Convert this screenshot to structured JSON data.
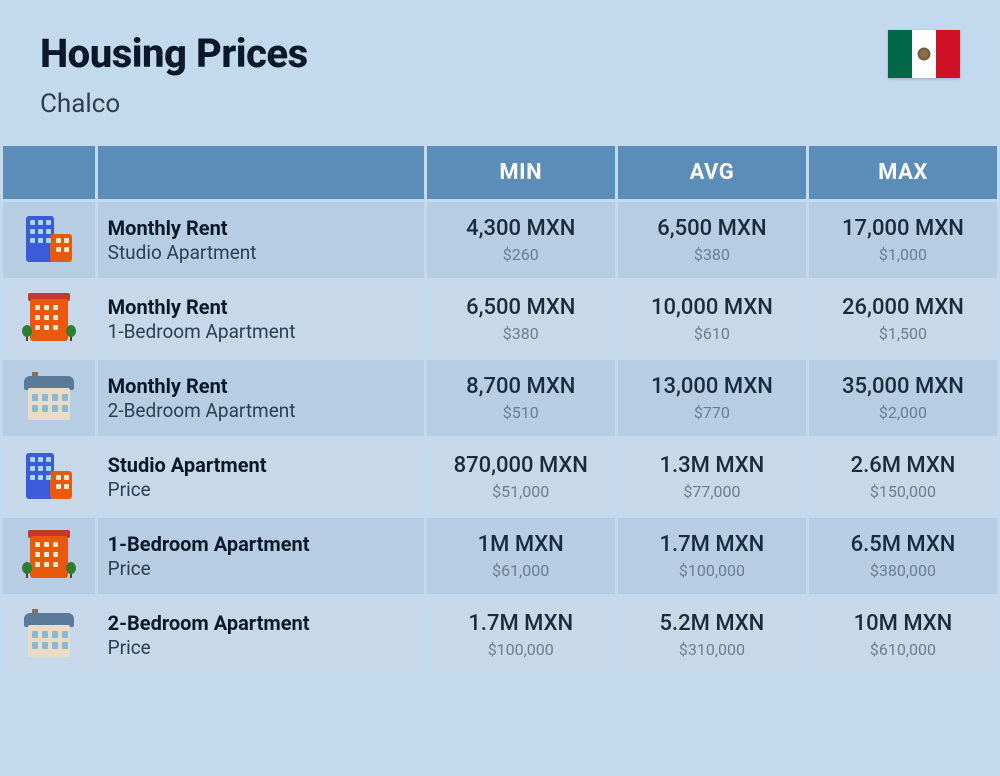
{
  "header": {
    "title": "Housing Prices",
    "subtitle": "Chalco"
  },
  "columns": {
    "min": "MIN",
    "avg": "AVG",
    "max": "MAX"
  },
  "rows": [
    {
      "icon": "building-tall",
      "title": "Monthly Rent",
      "subtitle": "Studio Apartment",
      "min_main": "4,300 MXN",
      "min_sub": "$260",
      "avg_main": "6,500 MXN",
      "avg_sub": "$380",
      "max_main": "17,000 MXN",
      "max_sub": "$1,000"
    },
    {
      "icon": "building-mid",
      "title": "Monthly Rent",
      "subtitle": "1-Bedroom Apartment",
      "min_main": "6,500 MXN",
      "min_sub": "$380",
      "avg_main": "10,000 MXN",
      "avg_sub": "$610",
      "max_main": "26,000 MXN",
      "max_sub": "$1,500"
    },
    {
      "icon": "building-house",
      "title": "Monthly Rent",
      "subtitle": "2-Bedroom Apartment",
      "min_main": "8,700 MXN",
      "min_sub": "$510",
      "avg_main": "13,000 MXN",
      "avg_sub": "$770",
      "max_main": "35,000 MXN",
      "max_sub": "$2,000"
    },
    {
      "icon": "building-tall",
      "title": "Studio Apartment",
      "subtitle": "Price",
      "min_main": "870,000 MXN",
      "min_sub": "$51,000",
      "avg_main": "1.3M MXN",
      "avg_sub": "$77,000",
      "max_main": "2.6M MXN",
      "max_sub": "$150,000"
    },
    {
      "icon": "building-mid",
      "title": "1-Bedroom Apartment",
      "subtitle": "Price",
      "min_main": "1M MXN",
      "min_sub": "$61,000",
      "avg_main": "1.7M MXN",
      "avg_sub": "$100,000",
      "max_main": "6.5M MXN",
      "max_sub": "$380,000"
    },
    {
      "icon": "building-house",
      "title": "2-Bedroom Apartment",
      "subtitle": "Price",
      "min_main": "1.7M MXN",
      "min_sub": "$100,000",
      "avg_main": "5.2M MXN",
      "avg_sub": "$310,000",
      "max_main": "10M MXN",
      "max_sub": "$610,000"
    }
  ],
  "colors": {
    "page_bg": "#c3d9ed",
    "header_bg": "#5b8db8",
    "row_bg": "#b7cde3",
    "row_alt_bg": "#c6d8ea",
    "text_dark": "#0a1929",
    "text_mid": "#2a3f52",
    "text_muted": "#6b7d8f"
  }
}
